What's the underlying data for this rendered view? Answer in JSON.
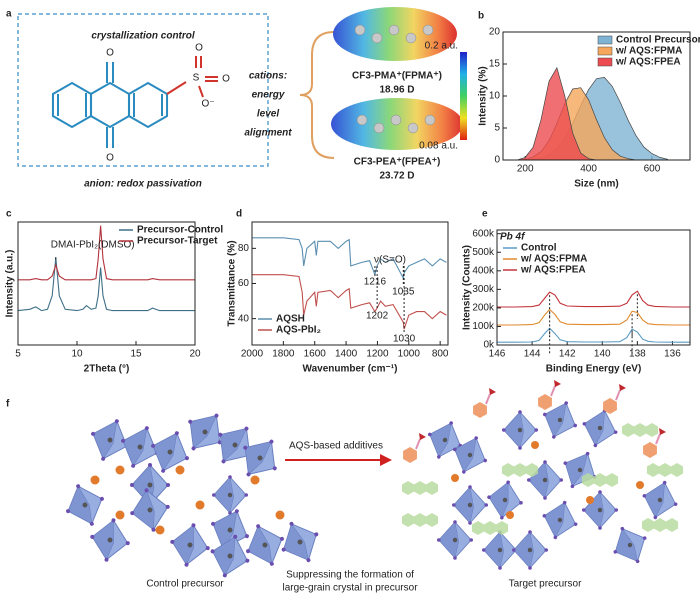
{
  "panel_labels": [
    "a",
    "b",
    "c",
    "d",
    "e",
    "f"
  ],
  "panel_a": {
    "top_label": "crystallization control",
    "bottom_label": "anion: redox passivation",
    "atoms": [
      "O",
      "O",
      "S",
      "O",
      "O",
      "O⁻"
    ],
    "cation_label": [
      "cations:",
      "energy",
      "level",
      "alignment"
    ],
    "molecules": [
      {
        "name": "CF3-PMA⁺(FPMA⁺)",
        "dipole": "18.96 D"
      },
      {
        "name": "CF3-PEA⁺(FPEA⁺)",
        "dipole": "23.72 D"
      }
    ],
    "colorbar": [
      "0.2 a.u.",
      "0.08 a.u."
    ]
  },
  "chart_data": [
    {
      "type": "area",
      "xlabel": "Size (nm)",
      "ylabel": "Intensity (%)",
      "x": [
        150,
        175,
        200,
        225,
        250,
        275,
        300,
        325,
        350,
        375,
        400,
        425,
        450,
        475,
        500,
        525,
        550,
        575,
        600,
        625,
        650
      ],
      "xlim": [
        130,
        720
      ],
      "xticks": [
        200,
        400,
        600
      ],
      "ylim": [
        0,
        20
      ],
      "yticks": [
        0,
        5,
        10,
        15,
        20
      ],
      "legend": "upper right",
      "series": [
        {
          "name": "Control Precursor",
          "color": "#7fb3d3",
          "values": [
            0,
            0,
            0,
            0.1,
            0.3,
            0.8,
            1.8,
            3.4,
            5.7,
            8.5,
            11,
            12.7,
            12.9,
            11.5,
            9,
            6.2,
            3.8,
            2,
            1,
            0.4,
            0.1
          ]
        },
        {
          "name": "w/ AQS:FPMA",
          "color": "#f5a65b",
          "values": [
            0,
            0,
            0.1,
            0.5,
            1.3,
            3,
            5.7,
            8.8,
            11.1,
            11.3,
            9.4,
            6.3,
            3.5,
            1.6,
            0.6,
            0.2,
            0,
            0,
            0,
            0,
            0
          ]
        },
        {
          "name": "w/ AQS:FPEA",
          "color": "#ec4b4f",
          "values": [
            0,
            0,
            0.4,
            2,
            6.3,
            12.3,
            14.4,
            10,
            4.2,
            1.1,
            0.2,
            0,
            0,
            0,
            0,
            0,
            0,
            0,
            0,
            0,
            0
          ]
        }
      ]
    },
    {
      "type": "line",
      "xlabel": "2Theta (°)",
      "ylabel": "Intensity (a.u.)",
      "x": [
        5,
        6,
        6.5,
        7,
        7.5,
        7.9,
        8.2,
        8.5,
        9,
        10,
        10.5,
        10.8,
        11.2,
        11.6,
        11.8,
        12,
        12.2,
        12.5,
        13,
        14,
        15,
        16,
        16.4,
        17,
        18,
        19,
        20
      ],
      "xlim": [
        5,
        20
      ],
      "xticks": [
        5,
        10,
        15,
        20
      ],
      "ylim": [
        0,
        100
      ],
      "yticks": [],
      "legend": "upper right",
      "annotations": [
        "DMAI-PbI₂(DMSO)"
      ],
      "series": [
        {
          "name": "Precursor-Control",
          "color": "#3d6f86",
          "values": [
            28,
            29,
            31,
            28,
            29,
            40,
            71,
            40,
            29,
            28,
            29,
            32,
            29,
            30,
            40,
            63,
            40,
            29,
            28,
            28,
            28,
            28,
            30,
            28,
            28,
            28,
            28
          ]
        },
        {
          "name": "Precursor-Target",
          "color": "#b2333b",
          "values": [
            53,
            53,
            54,
            53,
            53,
            56,
            65,
            56,
            53,
            53,
            53,
            53,
            53,
            54,
            70,
            97,
            70,
            54,
            53,
            53,
            53,
            53,
            54,
            53,
            53,
            53,
            53
          ]
        }
      ]
    },
    {
      "type": "line",
      "xlabel": "Wavenumber (cm⁻¹)",
      "ylabel": "Transmittance (%)",
      "x": [
        2000,
        1900,
        1800,
        1700,
        1680,
        1670,
        1650,
        1600,
        1590,
        1580,
        1500,
        1450,
        1400,
        1380,
        1370,
        1300,
        1250,
        1216,
        1202,
        1180,
        1150,
        1100,
        1035,
        1030,
        1000,
        950,
        900,
        850,
        800,
        760
      ],
      "xlim": [
        2000,
        750
      ],
      "xticks": [
        2000,
        1800,
        1600,
        1400,
        1200,
        1000,
        800
      ],
      "ylim": [
        25,
        95
      ],
      "yticks": [
        40,
        60,
        80
      ],
      "legend": "lower left",
      "annotations": [
        "ν(S=O)",
        "1216",
        "1035",
        "1202",
        "1030"
      ],
      "series": [
        {
          "name": "AQSH",
          "color": "#5a8fb0",
          "values": [
            86,
            86,
            86,
            85,
            80,
            70,
            80,
            84,
            76,
            84,
            84,
            80,
            84,
            85,
            70,
            72,
            73,
            65,
            70,
            74,
            72,
            74,
            63,
            66,
            70,
            72,
            74,
            70,
            74,
            72
          ]
        },
        {
          "name": "AQS-PbI₂",
          "color": "#c0504d",
          "values": [
            65,
            65,
            65,
            64,
            55,
            42,
            50,
            55,
            47,
            55,
            56,
            52,
            56,
            57,
            46,
            48,
            49,
            44,
            46,
            50,
            47,
            48,
            38,
            34,
            42,
            44,
            44,
            40,
            44,
            42
          ]
        }
      ]
    },
    {
      "type": "line",
      "title": "Pb 4f",
      "xlabel": "Binding Energy (eV)",
      "ylabel": "Intensity (Counts)",
      "x": [
        146,
        145,
        144,
        143.6,
        143.3,
        143,
        142.7,
        142.4,
        142,
        141,
        140,
        139,
        138.6,
        138.3,
        138,
        137.7,
        137.4,
        137,
        136,
        135
      ],
      "xlim": [
        146,
        135
      ],
      "xticks": [
        146,
        144,
        142,
        140,
        138,
        136
      ],
      "ylim": [
        0,
        620000
      ],
      "yticks": [
        {
          "value": 0,
          "label": "0k"
        },
        {
          "value": 100000,
          "label": "100k"
        },
        {
          "value": 200000,
          "label": "200k"
        },
        {
          "value": 300000,
          "label": "300k"
        },
        {
          "value": 400000,
          "label": "400k"
        },
        {
          "value": 500000,
          "label": "500k"
        },
        {
          "value": 600000,
          "label": "600k"
        }
      ],
      "legend": "upper left",
      "series": [
        {
          "name": "Control",
          "color": "#5b9bc4",
          "values": [
            15000,
            15000,
            16000,
            25000,
            60000,
            90000,
            62000,
            28000,
            18000,
            16000,
            16000,
            18000,
            40000,
            85000,
            70000,
            32000,
            20000,
            16000,
            15000,
            15000
          ]
        },
        {
          "name": "w/ AQS:FPMA",
          "color": "#e08a2c",
          "values": [
            108000,
            108000,
            110000,
            120000,
            160000,
            192000,
            165000,
            125000,
            112000,
            110000,
            110000,
            112000,
            135000,
            182000,
            175000,
            135000,
            115000,
            110000,
            108000,
            108000
          ]
        },
        {
          "name": "w/ AQS:FPEA",
          "color": "#c2343c",
          "values": [
            205000,
            205000,
            207000,
            215000,
            250000,
            285000,
            270000,
            225000,
            210000,
            207000,
            207000,
            209000,
            225000,
            270000,
            290000,
            240000,
            215000,
            208000,
            205000,
            205000
          ]
        }
      ]
    }
  ],
  "panel_f": {
    "arrow_label": "AQS-based additives",
    "left_label": "Control precursor",
    "right_label": "Target precursor",
    "caption": [
      "Suppressing the formation of",
      "large-grain crystal in precursor"
    ]
  }
}
